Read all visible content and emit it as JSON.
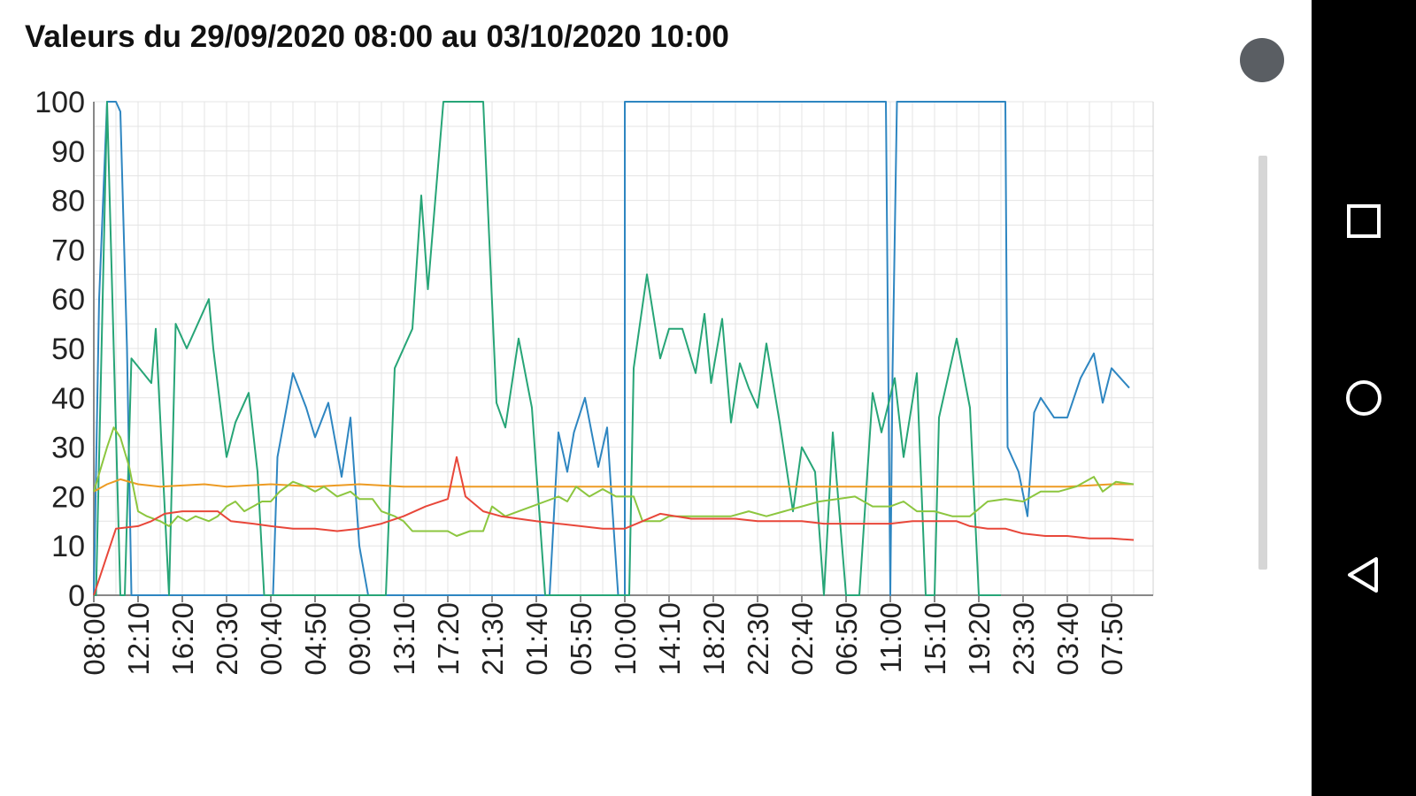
{
  "header": {
    "title": "Valeurs du 29/09/2020 08:00 au 03/10/2020 10:00"
  },
  "chart_data": {
    "type": "line",
    "title": "Valeurs du 29/09/2020 08:00 au 03/10/2020 10:00",
    "xlabel": "",
    "ylabel": "",
    "ylim": [
      0,
      100
    ],
    "yticks": [
      "0",
      "10",
      "20",
      "30",
      "40",
      "50",
      "60",
      "70",
      "80",
      "90",
      "100"
    ],
    "x_tick_labels": [
      "08:00",
      "12:10",
      "16:20",
      "20:30",
      "00:40",
      "04:50",
      "09:00",
      "13:10",
      "17:20",
      "21:30",
      "01:40",
      "05:50",
      "10:00",
      "14:10",
      "18:20",
      "22:30",
      "02:40",
      "06:50",
      "11:00",
      "15:10",
      "19:20",
      "23:30",
      "03:40",
      "07:50"
    ],
    "x_index_range": [
      0,
      24
    ],
    "grid": true,
    "legend": "none",
    "series": [
      {
        "color": "#2e86c1",
        "points": [
          [
            0,
            0
          ],
          [
            0.12,
            60
          ],
          [
            0.3,
            100
          ],
          [
            0.5,
            100
          ],
          [
            0.6,
            98
          ],
          [
            0.75,
            50
          ],
          [
            0.85,
            0
          ],
          [
            1.6,
            0
          ],
          [
            3.8,
            0
          ],
          [
            4.05,
            0
          ],
          [
            4.15,
            28
          ],
          [
            4.5,
            45
          ],
          [
            4.8,
            38
          ],
          [
            5.0,
            32
          ],
          [
            5.3,
            39
          ],
          [
            5.6,
            24
          ],
          [
            5.8,
            36
          ],
          [
            6.0,
            10
          ],
          [
            6.2,
            0
          ],
          [
            10.3,
            0
          ],
          [
            10.5,
            33
          ],
          [
            10.7,
            25
          ],
          [
            10.85,
            33
          ],
          [
            11.1,
            40
          ],
          [
            11.4,
            26
          ],
          [
            11.6,
            34
          ],
          [
            11.7,
            20
          ],
          [
            11.85,
            0
          ],
          [
            12.0,
            0
          ],
          [
            12.0,
            100
          ],
          [
            17.9,
            100
          ],
          [
            18.0,
            0
          ],
          [
            18.05,
            45
          ],
          [
            18.15,
            100
          ],
          [
            20.6,
            100
          ],
          [
            20.65,
            30
          ],
          [
            20.9,
            25
          ],
          [
            21.1,
            16
          ],
          [
            21.25,
            37
          ],
          [
            21.4,
            40
          ],
          [
            21.7,
            36
          ],
          [
            22.0,
            36
          ],
          [
            22.3,
            44
          ],
          [
            22.6,
            49
          ],
          [
            22.8,
            39
          ],
          [
            23.0,
            46
          ],
          [
            23.4,
            42
          ]
        ]
      },
      {
        "color": "#27a577",
        "points": [
          [
            0,
            0
          ],
          [
            0.05,
            0
          ],
          [
            0.3,
            100
          ],
          [
            0.6,
            0
          ],
          [
            0.7,
            0
          ],
          [
            0.85,
            48
          ],
          [
            1.3,
            43
          ],
          [
            1.4,
            54
          ],
          [
            1.7,
            0
          ],
          [
            1.85,
            55
          ],
          [
            2.1,
            50
          ],
          [
            2.6,
            60
          ],
          [
            2.7,
            50
          ],
          [
            3.0,
            28
          ],
          [
            3.2,
            35
          ],
          [
            3.5,
            41
          ],
          [
            3.7,
            25
          ],
          [
            3.85,
            0
          ],
          [
            6.6,
            0
          ],
          [
            6.8,
            46
          ],
          [
            7.2,
            54
          ],
          [
            7.4,
            81
          ],
          [
            7.55,
            62
          ],
          [
            7.9,
            100
          ],
          [
            8.8,
            100
          ],
          [
            9.1,
            39
          ],
          [
            9.3,
            34
          ],
          [
            9.6,
            52
          ],
          [
            9.9,
            38
          ],
          [
            10.2,
            0
          ],
          [
            12.1,
            0
          ],
          [
            12.2,
            46
          ],
          [
            12.5,
            65
          ],
          [
            12.8,
            48
          ],
          [
            13.0,
            54
          ],
          [
            13.3,
            54
          ],
          [
            13.6,
            45
          ],
          [
            13.8,
            57
          ],
          [
            13.95,
            43
          ],
          [
            14.2,
            56
          ],
          [
            14.4,
            35
          ],
          [
            14.6,
            47
          ],
          [
            14.8,
            42
          ],
          [
            15.0,
            38
          ],
          [
            15.2,
            51
          ],
          [
            15.5,
            35
          ],
          [
            15.8,
            17
          ],
          [
            16.0,
            30
          ],
          [
            16.3,
            25
          ],
          [
            16.5,
            0
          ],
          [
            16.7,
            33
          ],
          [
            17.0,
            0
          ],
          [
            17.3,
            0
          ],
          [
            17.6,
            41
          ],
          [
            17.8,
            33
          ],
          [
            18.1,
            44
          ],
          [
            18.3,
            28
          ],
          [
            18.6,
            45
          ],
          [
            18.8,
            0
          ],
          [
            19.0,
            0
          ],
          [
            19.1,
            36
          ],
          [
            19.5,
            52
          ],
          [
            19.8,
            38
          ],
          [
            20.0,
            0
          ],
          [
            20.5,
            0
          ]
        ]
      },
      {
        "color": "#ed9b23",
        "points": [
          [
            0,
            21
          ],
          [
            0.3,
            22.5
          ],
          [
            0.6,
            23.5
          ],
          [
            1.0,
            22.5
          ],
          [
            1.5,
            22
          ],
          [
            2.5,
            22.5
          ],
          [
            3.0,
            22
          ],
          [
            4.0,
            22.5
          ],
          [
            5.0,
            22
          ],
          [
            6.0,
            22.5
          ],
          [
            7.0,
            22
          ],
          [
            8.0,
            22
          ],
          [
            9.0,
            22
          ],
          [
            10.0,
            22
          ],
          [
            11.0,
            22
          ],
          [
            12.0,
            22
          ],
          [
            13.0,
            22
          ],
          [
            14.0,
            22
          ],
          [
            15.0,
            22
          ],
          [
            16.0,
            22
          ],
          [
            17.0,
            22
          ],
          [
            18.0,
            22
          ],
          [
            19.0,
            22
          ],
          [
            20.0,
            22
          ],
          [
            21.0,
            22
          ],
          [
            22.0,
            22
          ],
          [
            23.0,
            22.5
          ],
          [
            23.5,
            22.5
          ]
        ]
      },
      {
        "color": "#8cc63f",
        "points": [
          [
            0,
            21
          ],
          [
            0.3,
            30
          ],
          [
            0.45,
            34
          ],
          [
            0.6,
            32
          ],
          [
            0.8,
            26
          ],
          [
            1.0,
            17
          ],
          [
            1.2,
            16
          ],
          [
            1.5,
            15
          ],
          [
            1.7,
            14
          ],
          [
            1.9,
            16
          ],
          [
            2.1,
            15
          ],
          [
            2.3,
            16
          ],
          [
            2.6,
            15
          ],
          [
            2.8,
            16
          ],
          [
            3.0,
            18
          ],
          [
            3.2,
            19
          ],
          [
            3.4,
            17
          ],
          [
            3.6,
            18
          ],
          [
            3.8,
            19
          ],
          [
            4.0,
            19
          ],
          [
            4.2,
            21
          ],
          [
            4.5,
            23
          ],
          [
            4.8,
            22
          ],
          [
            5.0,
            21
          ],
          [
            5.2,
            22
          ],
          [
            5.5,
            20
          ],
          [
            5.8,
            21
          ],
          [
            6.0,
            19.5
          ],
          [
            6.3,
            19.5
          ],
          [
            6.5,
            17
          ],
          [
            6.8,
            16
          ],
          [
            7.0,
            15
          ],
          [
            7.2,
            13
          ],
          [
            7.6,
            13
          ],
          [
            8.0,
            13
          ],
          [
            8.2,
            12
          ],
          [
            8.5,
            13
          ],
          [
            8.8,
            13
          ],
          [
            9.0,
            18
          ],
          [
            9.3,
            16
          ],
          [
            9.6,
            17
          ],
          [
            9.9,
            18
          ],
          [
            10.2,
            19
          ],
          [
            10.5,
            20
          ],
          [
            10.7,
            19
          ],
          [
            10.9,
            22
          ],
          [
            11.2,
            20
          ],
          [
            11.5,
            21.5
          ],
          [
            11.8,
            20
          ],
          [
            12.2,
            20
          ],
          [
            12.4,
            15
          ],
          [
            12.8,
            15
          ],
          [
            13.0,
            16
          ],
          [
            13.5,
            16
          ],
          [
            14.0,
            16
          ],
          [
            14.4,
            16
          ],
          [
            14.8,
            17
          ],
          [
            15.2,
            16
          ],
          [
            15.6,
            17
          ],
          [
            16.0,
            18
          ],
          [
            16.4,
            19
          ],
          [
            16.8,
            19.5
          ],
          [
            17.2,
            20
          ],
          [
            17.6,
            18
          ],
          [
            18.0,
            18
          ],
          [
            18.3,
            19
          ],
          [
            18.6,
            17
          ],
          [
            19.0,
            17
          ],
          [
            19.4,
            16
          ],
          [
            19.8,
            16
          ],
          [
            20.2,
            19
          ],
          [
            20.6,
            19.5
          ],
          [
            21.0,
            19
          ],
          [
            21.4,
            21
          ],
          [
            21.8,
            21
          ],
          [
            22.2,
            22
          ],
          [
            22.6,
            24
          ],
          [
            22.8,
            21
          ],
          [
            23.1,
            23
          ],
          [
            23.5,
            22.5
          ]
        ]
      },
      {
        "color": "#e8473a",
        "points": [
          [
            0,
            0
          ],
          [
            0.5,
            13.5
          ],
          [
            1.0,
            14
          ],
          [
            1.3,
            15
          ],
          [
            1.6,
            16.5
          ],
          [
            2.0,
            17
          ],
          [
            2.5,
            17
          ],
          [
            2.8,
            17
          ],
          [
            3.1,
            15
          ],
          [
            3.6,
            14.5
          ],
          [
            4.0,
            14
          ],
          [
            4.5,
            13.5
          ],
          [
            5.0,
            13.5
          ],
          [
            5.5,
            13
          ],
          [
            6.0,
            13.5
          ],
          [
            6.5,
            14.5
          ],
          [
            7.0,
            16
          ],
          [
            7.5,
            18
          ],
          [
            8.0,
            19.5
          ],
          [
            8.2,
            28
          ],
          [
            8.4,
            20
          ],
          [
            8.8,
            17
          ],
          [
            9.2,
            16
          ],
          [
            10.0,
            15
          ],
          [
            10.5,
            14.5
          ],
          [
            11.0,
            14
          ],
          [
            11.5,
            13.5
          ],
          [
            12.0,
            13.5
          ],
          [
            12.4,
            15
          ],
          [
            12.8,
            16.5
          ],
          [
            13.5,
            15.5
          ],
          [
            14.0,
            15.5
          ],
          [
            14.5,
            15.5
          ],
          [
            15.0,
            15
          ],
          [
            15.5,
            15
          ],
          [
            16.0,
            15
          ],
          [
            16.5,
            14.5
          ],
          [
            17.0,
            14.5
          ],
          [
            17.5,
            14.5
          ],
          [
            18.0,
            14.5
          ],
          [
            18.5,
            15
          ],
          [
            19.0,
            15
          ],
          [
            19.5,
            15
          ],
          [
            19.8,
            14
          ],
          [
            20.2,
            13.5
          ],
          [
            20.6,
            13.5
          ],
          [
            21.0,
            12.5
          ],
          [
            21.5,
            12
          ],
          [
            22.0,
            12
          ],
          [
            22.5,
            11.5
          ],
          [
            23.0,
            11.5
          ],
          [
            23.5,
            11.2
          ]
        ]
      }
    ]
  },
  "ui": {
    "overflow_button": "overflow-dot",
    "nav": {
      "square": "recent-apps-icon",
      "circle": "home-icon",
      "back": "back-icon"
    }
  }
}
